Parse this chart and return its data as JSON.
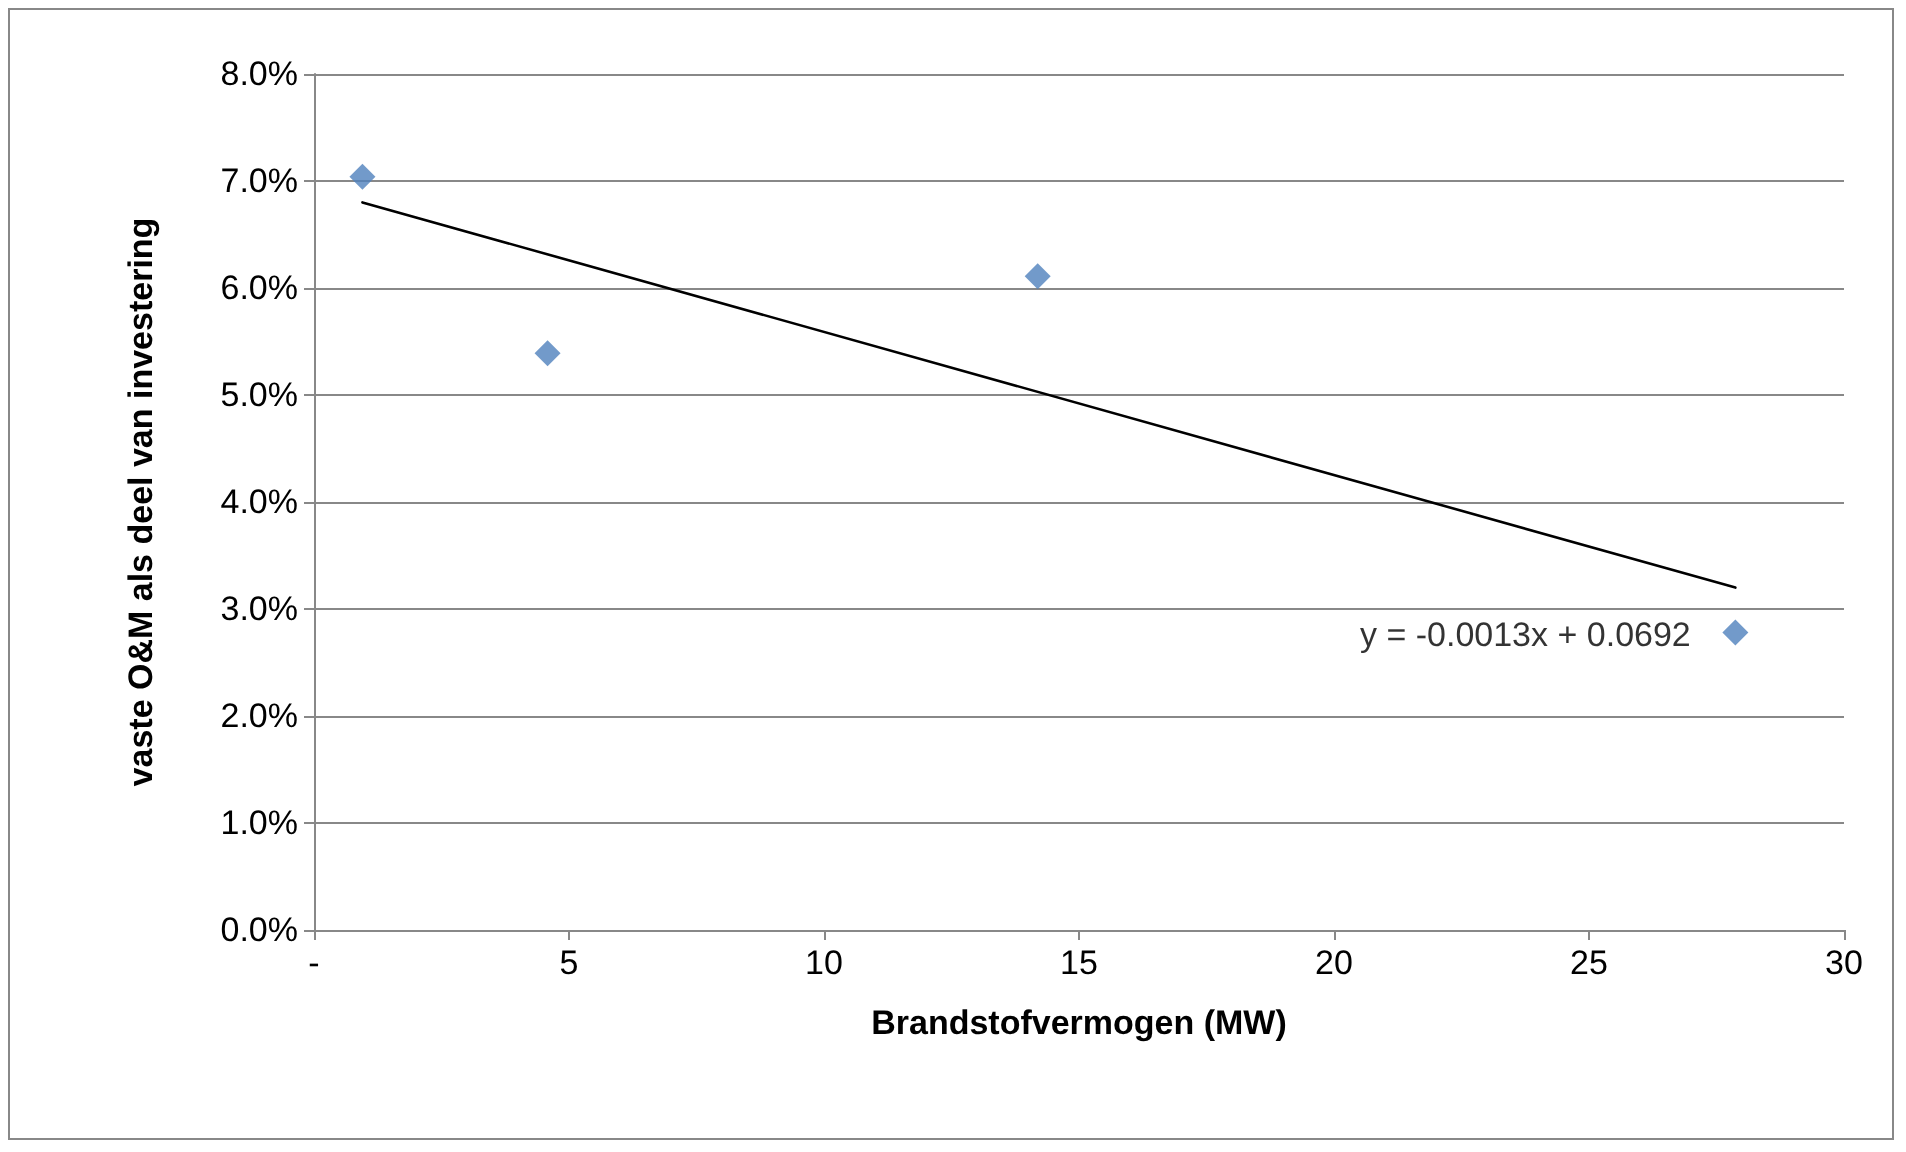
{
  "chart_data": {
    "type": "scatter",
    "xlabel": "Brandstofvermogen (MW)",
    "ylabel": "vaste O&M als deel van investering",
    "series": [
      {
        "color": "#4f81bd",
        "x": [
          0.95,
          4.58,
          14.19,
          27.87
        ],
        "values": [
          0.0704,
          0.0539,
          0.0611,
          0.0278
        ]
      },
      {
        "type": "line",
        "color": "#000000",
        "x": [
          0.95,
          27.87
        ],
        "values": [
          0.068,
          0.032
        ],
        "marker": "none"
      }
    ],
    "xlim": [
      0,
      30
    ],
    "xticks": [
      {
        "value": 0,
        "label": "-"
      },
      5,
      10,
      15,
      20,
      25,
      30
    ],
    "ylim": [
      0,
      0.08
    ],
    "yticks": [
      {
        "value": 0,
        "label": "0.0%"
      },
      {
        "value": 0.01,
        "label": "1.0%"
      },
      {
        "value": 0.02,
        "label": "2.0%"
      },
      {
        "value": 0.03,
        "label": "3.0%"
      },
      {
        "value": 0.04,
        "label": "4.0%"
      },
      {
        "value": 0.05,
        "label": "5.0%"
      },
      {
        "value": 0.06,
        "label": "6.0%"
      },
      {
        "value": 0.07,
        "label": "7.0%"
      },
      {
        "value": 0.08,
        "label": "8.0%"
      }
    ],
    "annotations": [
      {
        "text": "y = -0.0013x + 0.0692",
        "x": 27.87,
        "y": 0.032
      }
    ],
    "grid": "y",
    "marker": "diamond"
  }
}
